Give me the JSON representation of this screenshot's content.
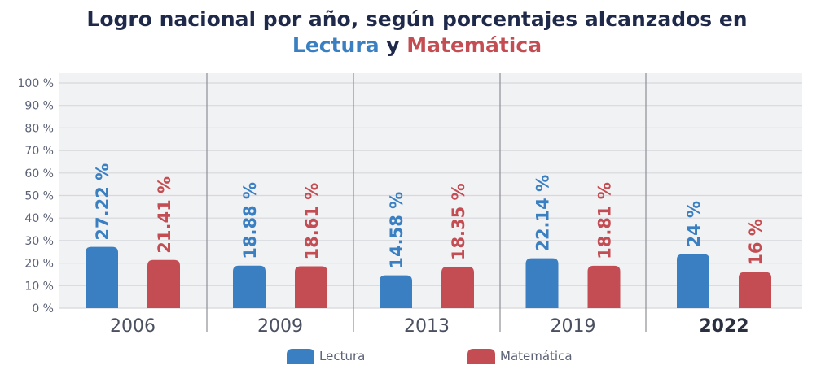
{
  "chart_data": {
    "type": "bar",
    "title_line1": "Logro nacional por año, según porcentajes alcanzados en",
    "title_line2_a": "Lectura",
    "title_line2_b": " y ",
    "title_line2_c": "Matemática",
    "categories": [
      "2006",
      "2009",
      "2013",
      "2019",
      "2022"
    ],
    "highlighted_category": "2022",
    "series": [
      {
        "name": "Lectura",
        "color": "#3a7fc1",
        "values": [
          27.22,
          18.88,
          14.58,
          22.14,
          24
        ],
        "labels": [
          "27.22 %",
          "18.88 %",
          "14.58 %",
          "22.14 %",
          "24 %"
        ]
      },
      {
        "name": "Matemática",
        "color": "#c44d53",
        "values": [
          21.41,
          18.61,
          18.35,
          18.81,
          16
        ],
        "labels": [
          "21.41 %",
          "18.61 %",
          "18.35 %",
          "18.81 %",
          "16 %"
        ]
      }
    ],
    "yticks": [
      "0 %",
      "10 %",
      "20 %",
      "30 %",
      "40 %",
      "50 %",
      "60 %",
      "70 %",
      "80 %",
      "90 %",
      "100 %"
    ],
    "ylim": [
      0,
      100
    ],
    "grid": true,
    "legend": "bottom-center",
    "xlabel": "",
    "ylabel": ""
  }
}
